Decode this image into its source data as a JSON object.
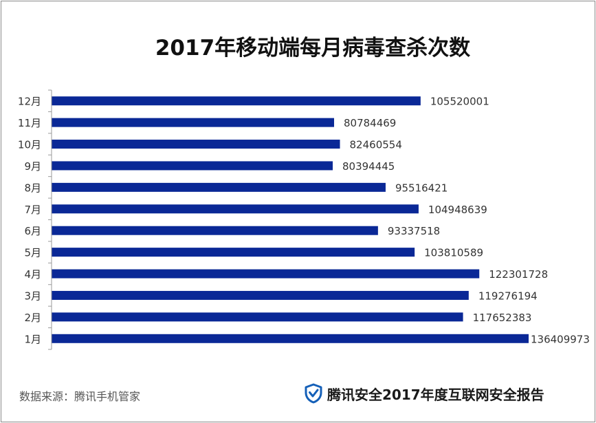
{
  "chart_data": {
    "type": "bar",
    "orientation": "horizontal",
    "title": "2017年移动端每月病毒查杀次数",
    "categories": [
      "1月",
      "2月",
      "3月",
      "4月",
      "5月",
      "6月",
      "7月",
      "8月",
      "9月",
      "10月",
      "11月",
      "12月"
    ],
    "values": [
      136409973,
      117652383,
      119276194,
      122301728,
      103810589,
      93337518,
      104948639,
      95516421,
      80394445,
      82460554,
      80784469,
      105520001
    ],
    "bar_color": "#0a2896",
    "grid": false,
    "legend": "none"
  },
  "footer": {
    "source": "数据来源：腾讯手机管家",
    "brand": "腾讯安全2017年度互联网安全报告"
  },
  "colors": {
    "brand_icon": "#1560b8"
  },
  "icons": {
    "brand": "shield-check-icon"
  }
}
